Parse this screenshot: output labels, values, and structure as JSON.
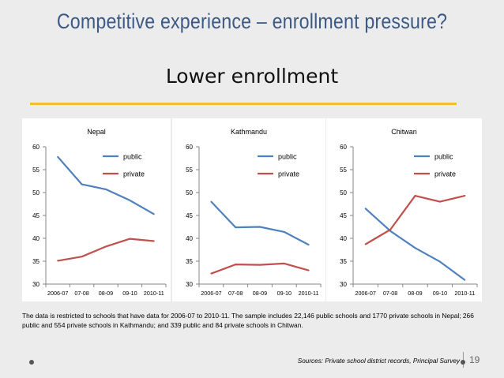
{
  "slide": {
    "title": "Competitive experience – enrollment pressure?",
    "subtitle": "Lower enrollment",
    "note": "The data is restricted to schools that have data for 2006-07 to 2010-11. The sample includes 22,146 public schools and 1770 private schools in Nepal; 266 public and 554 private schools in Kathmandu; and 339 public and 84 private schools in Chitwan.",
    "source": "Sources: Private school district records, Principal Survey",
    "page_number": "19"
  },
  "colors": {
    "public": "#4f81bd",
    "private": "#c0504d",
    "axis": "#868686"
  },
  "chart_data": [
    {
      "type": "line",
      "title": "Nepal",
      "categories": [
        "2006-07",
        "07-08",
        "08-09",
        "09-10",
        "2010-11"
      ],
      "series": [
        {
          "name": "public",
          "values": [
            57.8,
            51.8,
            50.7,
            48.3,
            45.3
          ]
        },
        {
          "name": "private",
          "values": [
            35.1,
            36.0,
            38.2,
            39.9,
            39.4
          ]
        }
      ],
      "ylim": [
        30,
        60
      ],
      "yticks": [
        30,
        35,
        40,
        45,
        50,
        55,
        60
      ],
      "grid": false,
      "legend": "top-right"
    },
    {
      "type": "line",
      "title": "Kathmandu",
      "categories": [
        "2006-07",
        "07-08",
        "08-09",
        "09-10",
        "2010-11"
      ],
      "series": [
        {
          "name": "public",
          "values": [
            48.0,
            42.4,
            42.5,
            41.4,
            38.6
          ]
        },
        {
          "name": "private",
          "values": [
            32.3,
            34.3,
            34.2,
            34.5,
            33.0
          ]
        }
      ],
      "ylim": [
        30,
        60
      ],
      "yticks": [
        30,
        35,
        40,
        45,
        50,
        55,
        60
      ],
      "grid": false,
      "legend": "top-right"
    },
    {
      "type": "line",
      "title": "Chitwan",
      "categories": [
        "2006-07",
        "07-08",
        "08-09",
        "09-10",
        "2010-11"
      ],
      "series": [
        {
          "name": "public",
          "values": [
            46.5,
            41.6,
            37.9,
            34.9,
            30.9
          ]
        },
        {
          "name": "private",
          "values": [
            38.7,
            41.9,
            49.3,
            48.0,
            49.3
          ]
        }
      ],
      "ylim": [
        30,
        60
      ],
      "yticks": [
        30,
        35,
        40,
        45,
        50,
        55,
        60
      ],
      "grid": false,
      "legend": "top-right"
    }
  ]
}
